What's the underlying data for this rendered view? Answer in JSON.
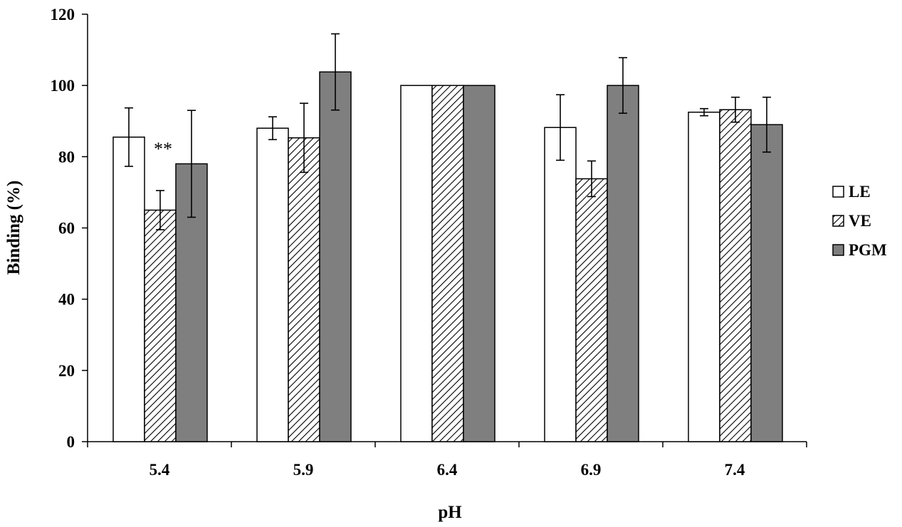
{
  "chart_data": {
    "type": "bar",
    "title": "",
    "xlabel": "pH",
    "ylabel": "Binding (%)",
    "categories": [
      "5.4",
      "5.9",
      "6.4",
      "6.9",
      "7.4"
    ],
    "ylim": [
      0,
      120
    ],
    "yticks": [
      0,
      20,
      40,
      60,
      80,
      100,
      120
    ],
    "grid": false,
    "legend_position": "right",
    "series": [
      {
        "name": "LE",
        "fill": "white",
        "values": [
          85.5,
          88,
          100,
          88.2,
          92.5
        ],
        "errors": [
          8.2,
          3.2,
          0,
          9.2,
          1.0
        ]
      },
      {
        "name": "VE",
        "fill": "hatch",
        "values": [
          65,
          85.3,
          100,
          73.8,
          93.2
        ],
        "errors": [
          5.5,
          9.7,
          0,
          5.0,
          3.5
        ]
      },
      {
        "name": "PGM",
        "fill": "gray",
        "values": [
          78,
          103.8,
          100,
          100,
          89
        ],
        "errors": [
          15,
          10.7,
          0,
          7.8,
          7.7
        ]
      }
    ],
    "annotations": [
      {
        "text": "**",
        "category": "5.4",
        "series": "VE"
      }
    ]
  },
  "colors": {
    "pgm_fill": "#7f7f7f",
    "hatch_line": "#000000",
    "axis": "#000000"
  }
}
